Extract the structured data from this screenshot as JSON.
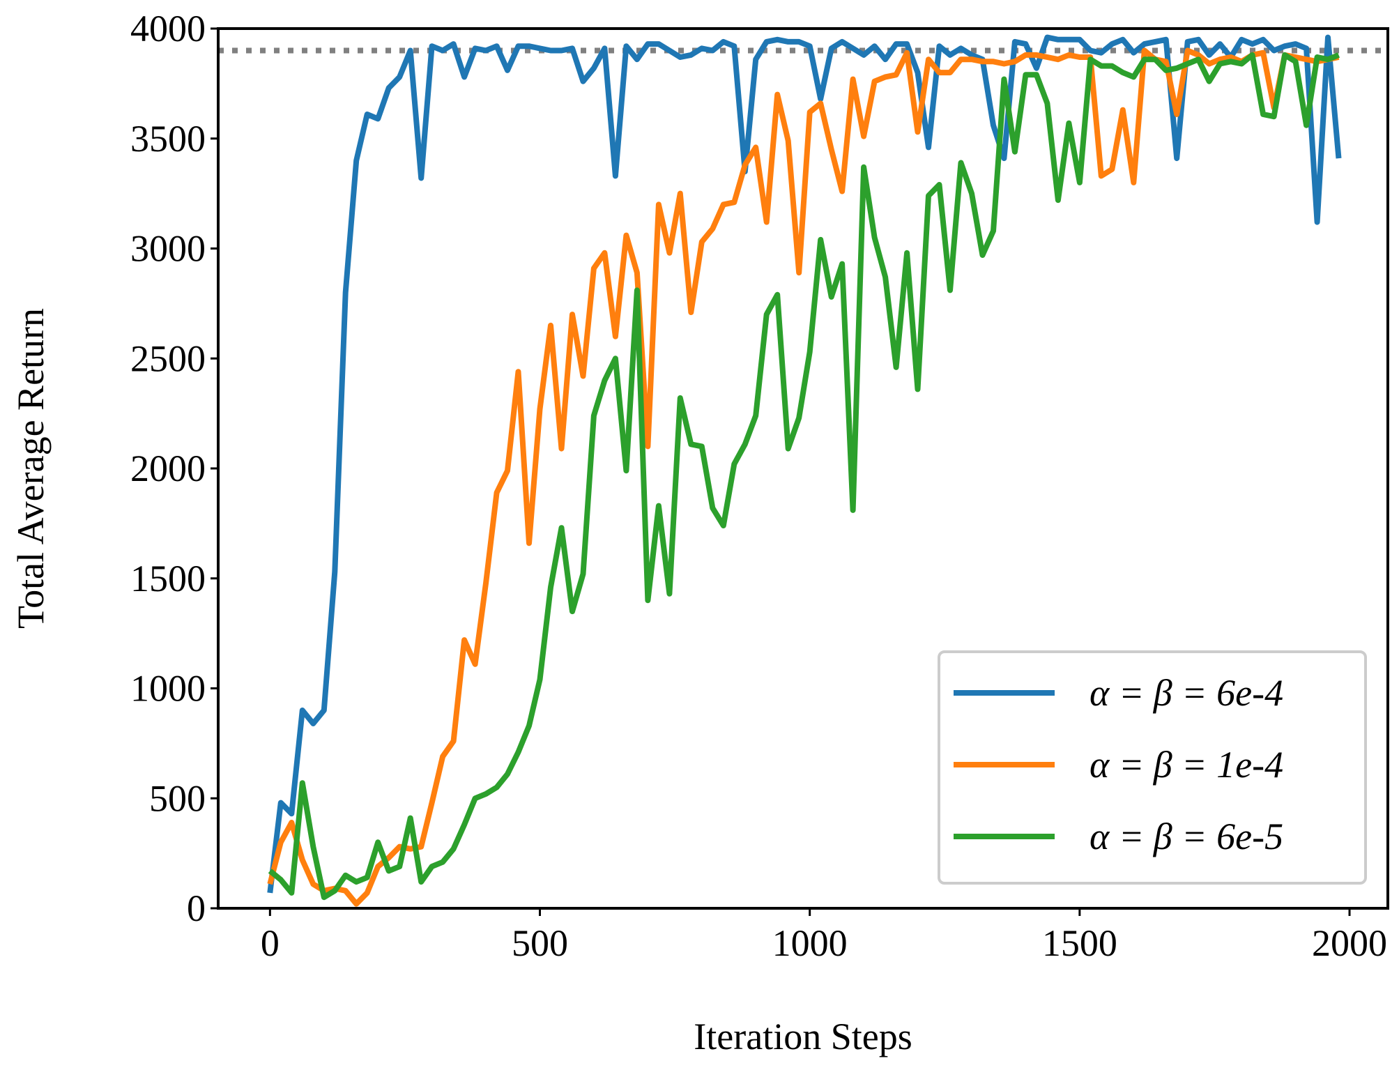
{
  "chart_data": {
    "type": "line",
    "xlabel": "Iteration Steps",
    "ylabel": "Total Average Return",
    "x": [
      0,
      20,
      40,
      60,
      80,
      100,
      120,
      140,
      160,
      180,
      200,
      220,
      240,
      260,
      280,
      300,
      320,
      340,
      360,
      380,
      400,
      420,
      440,
      460,
      480,
      500,
      520,
      540,
      560,
      580,
      600,
      620,
      640,
      660,
      680,
      700,
      720,
      740,
      760,
      780,
      800,
      820,
      840,
      860,
      880,
      900,
      920,
      940,
      960,
      980,
      1000,
      1020,
      1040,
      1060,
      1080,
      1100,
      1120,
      1140,
      1160,
      1180,
      1200,
      1220,
      1240,
      1260,
      1280,
      1300,
      1320,
      1340,
      1360,
      1380,
      1400,
      1420,
      1440,
      1460,
      1480,
      1500,
      1520,
      1540,
      1560,
      1580,
      1600,
      1620,
      1640,
      1660,
      1680,
      1700,
      1720,
      1740,
      1760,
      1780,
      1800,
      1820,
      1840,
      1860,
      1880,
      1900,
      1920,
      1940,
      1960,
      1980
    ],
    "series": [
      {
        "name": "α = β = 6e-4",
        "color": "#1f77b4",
        "values": [
          70,
          480,
          430,
          900,
          840,
          900,
          1530,
          2800,
          3400,
          3610,
          3590,
          3730,
          3780,
          3900,
          3320,
          3920,
          3900,
          3930,
          3780,
          3910,
          3900,
          3920,
          3810,
          3920,
          3920,
          3910,
          3900,
          3900,
          3910,
          3760,
          3820,
          3910,
          3330,
          3920,
          3860,
          3930,
          3930,
          3900,
          3870,
          3880,
          3910,
          3900,
          3940,
          3920,
          3350,
          3860,
          3940,
          3950,
          3940,
          3940,
          3920,
          3680,
          3910,
          3940,
          3910,
          3880,
          3920,
          3860,
          3930,
          3930,
          3800,
          3460,
          3920,
          3880,
          3910,
          3880,
          3860,
          3560,
          3410,
          3940,
          3930,
          3820,
          3960,
          3950,
          3950,
          3950,
          3900,
          3890,
          3930,
          3950,
          3890,
          3930,
          3940,
          3950,
          3410,
          3940,
          3950,
          3880,
          3930,
          3870,
          3950,
          3930,
          3950,
          3900,
          3920,
          3930,
          3910,
          3120,
          3960,
          3410
        ]
      },
      {
        "name": "α = β = 1e-4",
        "color": "#ff7f0e",
        "values": [
          110,
          300,
          390,
          220,
          110,
          80,
          90,
          80,
          20,
          70,
          190,
          230,
          280,
          270,
          280,
          480,
          690,
          760,
          1220,
          1110,
          1480,
          1890,
          1990,
          2440,
          1660,
          2270,
          2650,
          2090,
          2700,
          2420,
          2910,
          2980,
          2600,
          3060,
          2890,
          2100,
          3200,
          2980,
          3250,
          2710,
          3030,
          3090,
          3200,
          3210,
          3380,
          3460,
          3120,
          3700,
          3490,
          2890,
          3620,
          3660,
          3450,
          3260,
          3770,
          3510,
          3760,
          3780,
          3790,
          3890,
          3530,
          3860,
          3800,
          3800,
          3860,
          3860,
          3850,
          3850,
          3840,
          3850,
          3880,
          3880,
          3870,
          3860,
          3880,
          3870,
          3870,
          3330,
          3360,
          3630,
          3300,
          3900,
          3860,
          3850,
          3610,
          3900,
          3880,
          3840,
          3860,
          3870,
          3850,
          3880,
          3890,
          3640,
          3880,
          3870,
          3860,
          3850,
          3860,
          3870
        ]
      },
      {
        "name": "α = β = 6e-5",
        "color": "#2ca02c",
        "values": [
          170,
          130,
          70,
          570,
          280,
          50,
          80,
          150,
          120,
          140,
          300,
          170,
          190,
          410,
          120,
          190,
          210,
          270,
          380,
          500,
          520,
          550,
          610,
          710,
          830,
          1040,
          1460,
          1730,
          1350,
          1520,
          2240,
          2400,
          2500,
          1990,
          2810,
          1400,
          1830,
          1430,
          2320,
          2110,
          2100,
          1820,
          1740,
          2020,
          2110,
          2240,
          2700,
          2790,
          2090,
          2230,
          2530,
          3040,
          2780,
          2930,
          1810,
          3370,
          3050,
          2870,
          2460,
          2980,
          2360,
          3240,
          3290,
          2810,
          3390,
          3250,
          2970,
          3080,
          3770,
          3440,
          3790,
          3790,
          3660,
          3220,
          3570,
          3300,
          3860,
          3830,
          3830,
          3800,
          3780,
          3860,
          3860,
          3810,
          3820,
          3840,
          3860,
          3760,
          3840,
          3850,
          3840,
          3880,
          3610,
          3600,
          3880,
          3850,
          3560,
          3870,
          3860,
          3880
        ]
      }
    ],
    "reference_line": {
      "value": 3900,
      "color": "#808080"
    },
    "xlim": [
      -96,
      2071
    ],
    "ylim": [
      0,
      4000
    ],
    "xticks": [
      0,
      500,
      1000,
      1500,
      2000
    ],
    "yticks": [
      0,
      500,
      1000,
      1500,
      2000,
      2500,
      3000,
      3500,
      4000
    ],
    "legend": "lower right"
  }
}
